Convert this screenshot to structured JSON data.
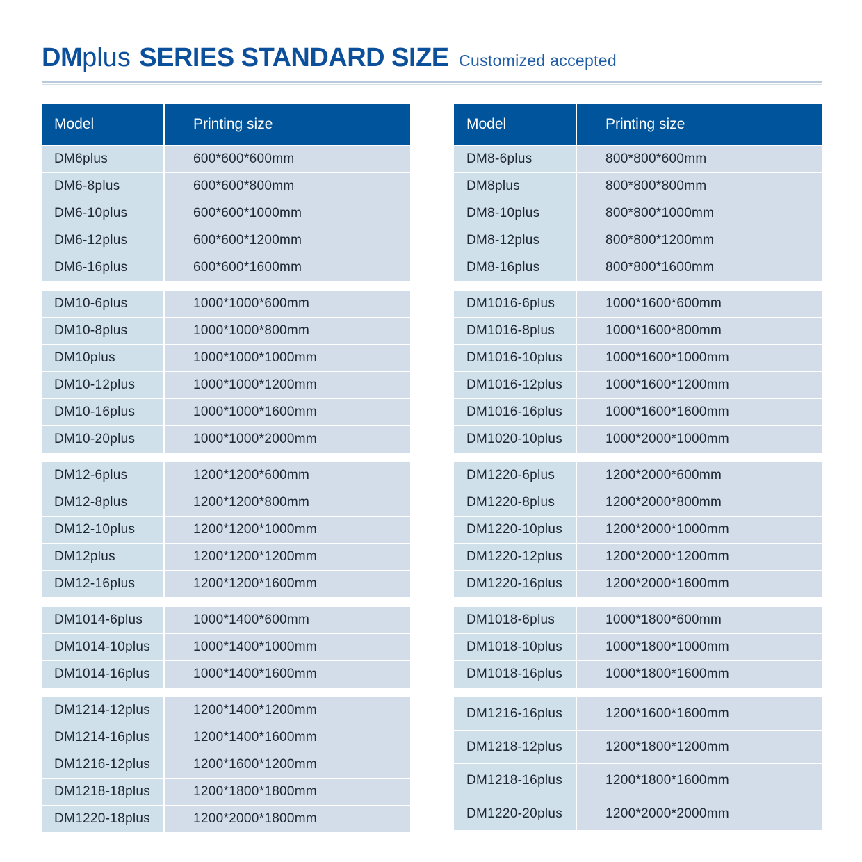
{
  "header": {
    "title_dm": "DM",
    "title_plus": "plus",
    "title_main": "SERIES STANDARD SIZE",
    "subtitle": "Customized accepted"
  },
  "colors": {
    "header_bg": "#00549c",
    "title": "#0c4f9b",
    "model_cell": "#cfe0ea",
    "size_cell": "#d3dce9"
  },
  "left_table": {
    "col_model": "Model",
    "col_size": "Printing size",
    "groups": [
      [
        [
          "DM6plus",
          "600*600*600mm"
        ],
        [
          "DM6-8plus",
          "600*600*800mm"
        ],
        [
          "DM6-10plus",
          "600*600*1000mm"
        ],
        [
          "DM6-12plus",
          "600*600*1200mm"
        ],
        [
          "DM6-16plus",
          "600*600*1600mm"
        ]
      ],
      [
        [
          "DM10-6plus",
          "1000*1000*600mm"
        ],
        [
          "DM10-8plus",
          "1000*1000*800mm"
        ],
        [
          "DM10plus",
          "1000*1000*1000mm"
        ],
        [
          "DM10-12plus",
          "1000*1000*1200mm"
        ],
        [
          "DM10-16plus",
          "1000*1000*1600mm"
        ],
        [
          "DM10-20plus",
          "1000*1000*2000mm"
        ]
      ],
      [
        [
          "DM12-6plus",
          "1200*1200*600mm"
        ],
        [
          "DM12-8plus",
          "1200*1200*800mm"
        ],
        [
          "DM12-10plus",
          "1200*1200*1000mm"
        ],
        [
          "DM12plus",
          "1200*1200*1200mm"
        ],
        [
          "DM12-16plus",
          "1200*1200*1600mm"
        ]
      ],
      [
        [
          "DM1014-6plus",
          "1000*1400*600mm"
        ],
        [
          "DM1014-10plus",
          "1000*1400*1000mm"
        ],
        [
          "DM1014-16plus",
          "1000*1400*1600mm"
        ]
      ],
      [
        [
          "DM1214-12plus",
          "1200*1400*1200mm"
        ],
        [
          "DM1214-16plus",
          "1200*1400*1600mm"
        ],
        [
          "DM1216-12plus",
          "1200*1600*1200mm"
        ],
        [
          "DM1218-18plus",
          "1200*1800*1800mm"
        ],
        [
          "DM1220-18plus",
          "1200*2000*1800mm"
        ]
      ]
    ]
  },
  "right_table": {
    "col_model": "Model",
    "col_size": "Printing size",
    "groups": [
      [
        [
          "DM8-6plus",
          "800*800*600mm"
        ],
        [
          "DM8plus",
          "800*800*800mm"
        ],
        [
          "DM8-10plus",
          "800*800*1000mm"
        ],
        [
          "DM8-12plus",
          "800*800*1200mm"
        ],
        [
          "DM8-16plus",
          "800*800*1600mm"
        ]
      ],
      [
        [
          "DM1016-6plus",
          "1000*1600*600mm"
        ],
        [
          "DM1016-8plus",
          "1000*1600*800mm"
        ],
        [
          "DM1016-10plus",
          "1000*1600*1000mm"
        ],
        [
          "DM1016-12plus",
          "1000*1600*1200mm"
        ],
        [
          "DM1016-16plus",
          "1000*1600*1600mm"
        ],
        [
          "DM1020-10plus",
          "1000*2000*1000mm"
        ]
      ],
      [
        [
          "DM1220-6plus",
          "1200*2000*600mm"
        ],
        [
          "DM1220-8plus",
          "1200*2000*800mm"
        ],
        [
          "DM1220-10plus",
          "1200*2000*1000mm"
        ],
        [
          "DM1220-12plus",
          "1200*2000*1200mm"
        ],
        [
          "DM1220-16plus",
          "1200*2000*1600mm"
        ]
      ],
      [
        [
          "DM1018-6plus",
          "1000*1800*600mm"
        ],
        [
          "DM1018-10plus",
          "1000*1800*1000mm"
        ],
        [
          "DM1018-16plus",
          "1000*1800*1600mm"
        ]
      ],
      [
        [
          "DM1216-16plus",
          "1200*1600*1600mm"
        ],
        [
          "DM1218-12plus",
          "1200*1800*1200mm"
        ],
        [
          "DM1218-16plus",
          "1200*1800*1600mm"
        ],
        [
          "DM1220-20plus",
          "1200*2000*2000mm"
        ]
      ]
    ]
  }
}
